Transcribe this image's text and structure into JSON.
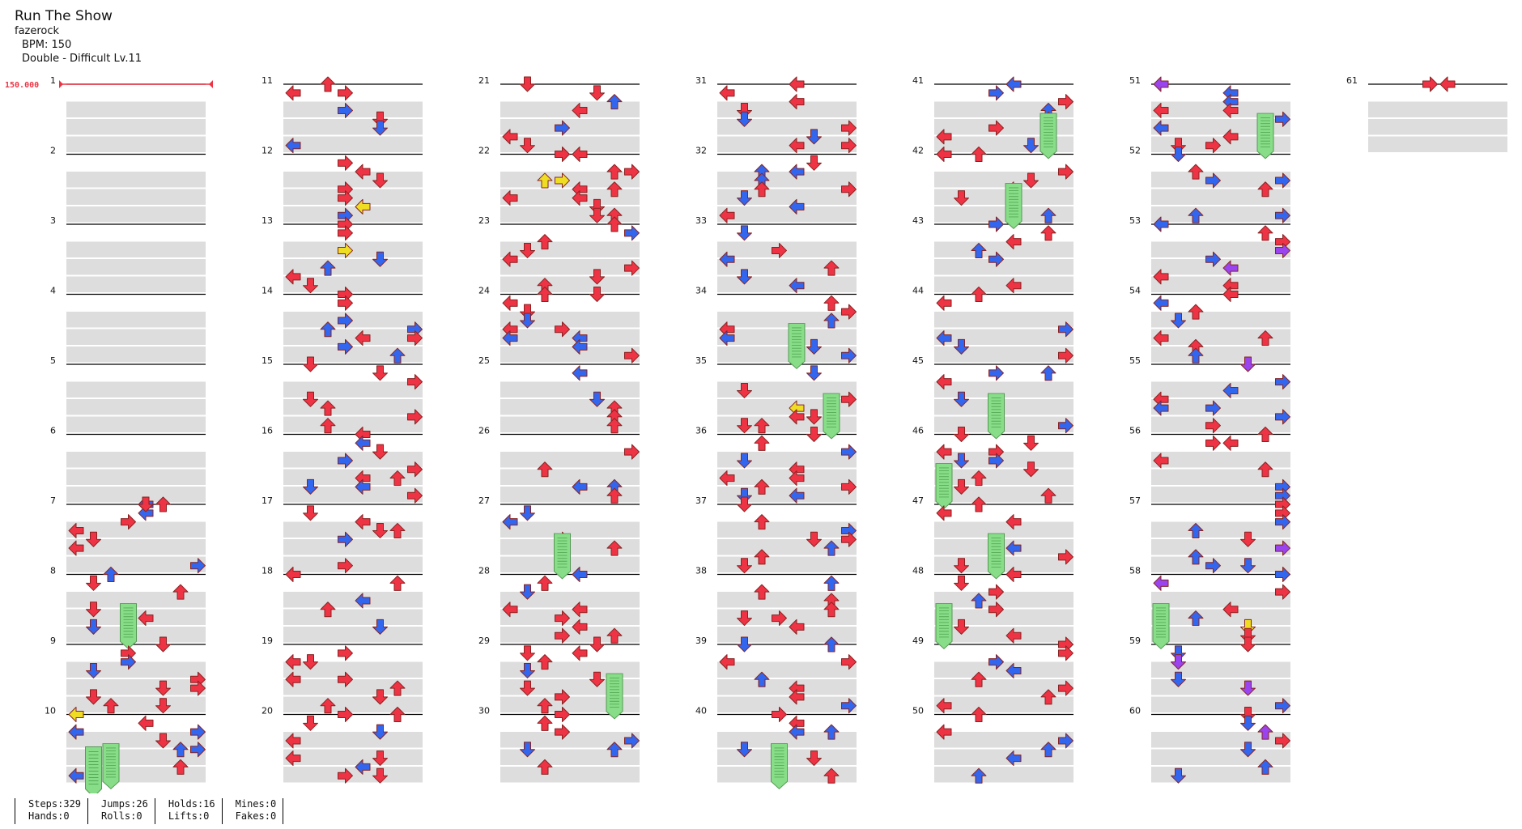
{
  "song": {
    "title": "Run The Show",
    "artist": "fazerock",
    "bpm_label": "BPM: 150",
    "difficulty_label": "Double - Difficult Lv.11"
  },
  "bpm_marker": "150.000",
  "measure_numbers": [
    "1",
    "2",
    "3",
    "4",
    "5",
    "6",
    "7",
    "8",
    "9",
    "10",
    "11",
    "12",
    "13",
    "14",
    "15",
    "16",
    "17",
    "18",
    "19",
    "20",
    "21",
    "22",
    "23",
    "24",
    "25",
    "26",
    "27",
    "28",
    "29",
    "30",
    "31",
    "32",
    "33",
    "34",
    "35",
    "36",
    "37",
    "38",
    "39",
    "40",
    "41",
    "42",
    "43",
    "44",
    "45",
    "46",
    "47",
    "48",
    "49",
    "50",
    "51",
    "52",
    "53",
    "54",
    "55",
    "56",
    "57",
    "58",
    "59",
    "60",
    "61"
  ],
  "colors": {
    "red": "#ee3344",
    "blue": "#3366ee",
    "purple": "#9944ee",
    "yellow": "#eedd22",
    "hold": "#88dd88",
    "lane": "#dddddd"
  },
  "stats": [
    {
      "top": "Steps:329",
      "bottom": "Hands:0"
    },
    {
      "top": "Jumps:26",
      "bottom": "Rolls:0"
    },
    {
      "top": "Holds:16",
      "bottom": "Lifts:0"
    },
    {
      "top": "Mines:0",
      "bottom": "Fakes:0"
    }
  ]
}
